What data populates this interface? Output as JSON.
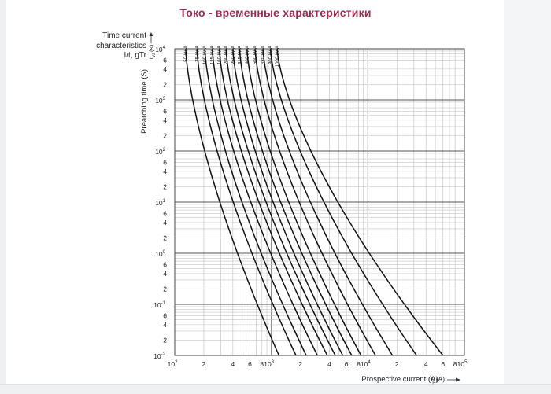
{
  "page": {
    "title": "Токо - временные характеристики"
  },
  "chart_data": {
    "type": "line",
    "scale": "log-log",
    "description_lines": [
      "Time current",
      "characteristics",
      "I/t, gTr"
    ],
    "ylabel": "Prearching time (S)",
    "ylabel_symbol": "t",
    "ylabel_subscript": "vs",
    "ylabel_unit": "(s)",
    "xlabel": "Prospective current (A)",
    "xlabel_symbol": "I",
    "xlabel_subscript": "p",
    "xlabel_unit": "(A)",
    "x_range": [
      100,
      100000
    ],
    "y_range": [
      0.01,
      10000
    ],
    "grid": true,
    "x_decade_labels": [
      {
        "value": 100,
        "base": "10",
        "exp": "2"
      },
      {
        "value": 1000,
        "base": "10",
        "exp": "3"
      },
      {
        "value": 10000,
        "base": "10",
        "exp": "4"
      },
      {
        "value": 100000,
        "base": "10",
        "exp": "5"
      }
    ],
    "x_minor_labels": [
      {
        "value": 200,
        "label": "2"
      },
      {
        "value": 400,
        "label": "4"
      },
      {
        "value": 600,
        "label": "6"
      },
      {
        "value": 800,
        "label": "8"
      },
      {
        "value": 2000,
        "label": "2"
      },
      {
        "value": 4000,
        "label": "4"
      },
      {
        "value": 6000,
        "label": "6"
      },
      {
        "value": 8000,
        "label": "8"
      },
      {
        "value": 20000,
        "label": "2"
      },
      {
        "value": 40000,
        "label": "4"
      },
      {
        "value": 60000,
        "label": "6"
      },
      {
        "value": 80000,
        "label": "8"
      }
    ],
    "y_decade_labels": [
      {
        "value": 10000,
        "base": "10",
        "exp": "4"
      },
      {
        "value": 1000,
        "base": "10",
        "exp": "3"
      },
      {
        "value": 100,
        "base": "10",
        "exp": "2"
      },
      {
        "value": 10,
        "base": "10",
        "exp": "1"
      },
      {
        "value": 1,
        "base": "10",
        "exp": "0"
      },
      {
        "value": 0.1,
        "base": "10",
        "exp": "-1"
      },
      {
        "value": 0.01,
        "base": "10",
        "exp": "-2"
      }
    ],
    "y_minor_labels": [
      {
        "value": 6000,
        "label": "6"
      },
      {
        "value": 4000,
        "label": "4"
      },
      {
        "value": 2000,
        "label": "2"
      },
      {
        "value": 600,
        "label": "6"
      },
      {
        "value": 400,
        "label": "4"
      },
      {
        "value": 200,
        "label": "2"
      },
      {
        "value": 60,
        "label": "6"
      },
      {
        "value": 40,
        "label": "4"
      },
      {
        "value": 20,
        "label": "2"
      },
      {
        "value": 6,
        "label": "6"
      },
      {
        "value": 4,
        "label": "4"
      },
      {
        "value": 2,
        "label": "2"
      },
      {
        "value": 0.6,
        "label": "6"
      },
      {
        "value": 0.4,
        "label": "4"
      },
      {
        "value": 0.2,
        "label": "2"
      },
      {
        "value": 0.06,
        "label": "6"
      },
      {
        "value": 0.04,
        "label": "4"
      },
      {
        "value": 0.02,
        "label": "2"
      }
    ],
    "series": [
      {
        "name": "50 kV A",
        "i_top": 130,
        "i_bottom": 1200
      },
      {
        "name": "75 kV A",
        "i_top": 170,
        "i_bottom": 1800
      },
      {
        "name": "100 kV A",
        "i_top": 205,
        "i_bottom": 2300
      },
      {
        "name": "125 kV A",
        "i_top": 245,
        "i_bottom": 3000
      },
      {
        "name": "160 kV A",
        "i_top": 290,
        "i_bottom": 3800
      },
      {
        "name": "200 kV A",
        "i_top": 340,
        "i_bottom": 4600
      },
      {
        "name": "250 kV A",
        "i_top": 400,
        "i_bottom": 5500
      },
      {
        "name": "315 kV A",
        "i_top": 470,
        "i_bottom": 6800
      },
      {
        "name": "400 kV A",
        "i_top": 560,
        "i_bottom": 8500
      },
      {
        "name": "500 kV A",
        "i_top": 680,
        "i_bottom": 12000
      },
      {
        "name": "630 kV A",
        "i_top": 820,
        "i_bottom": 18000
      },
      {
        "name": "800 kV A",
        "i_top": 980,
        "i_bottom": 32000
      },
      {
        "name": "1000 kV A",
        "i_top": 1150,
        "i_bottom": 60000
      }
    ]
  }
}
